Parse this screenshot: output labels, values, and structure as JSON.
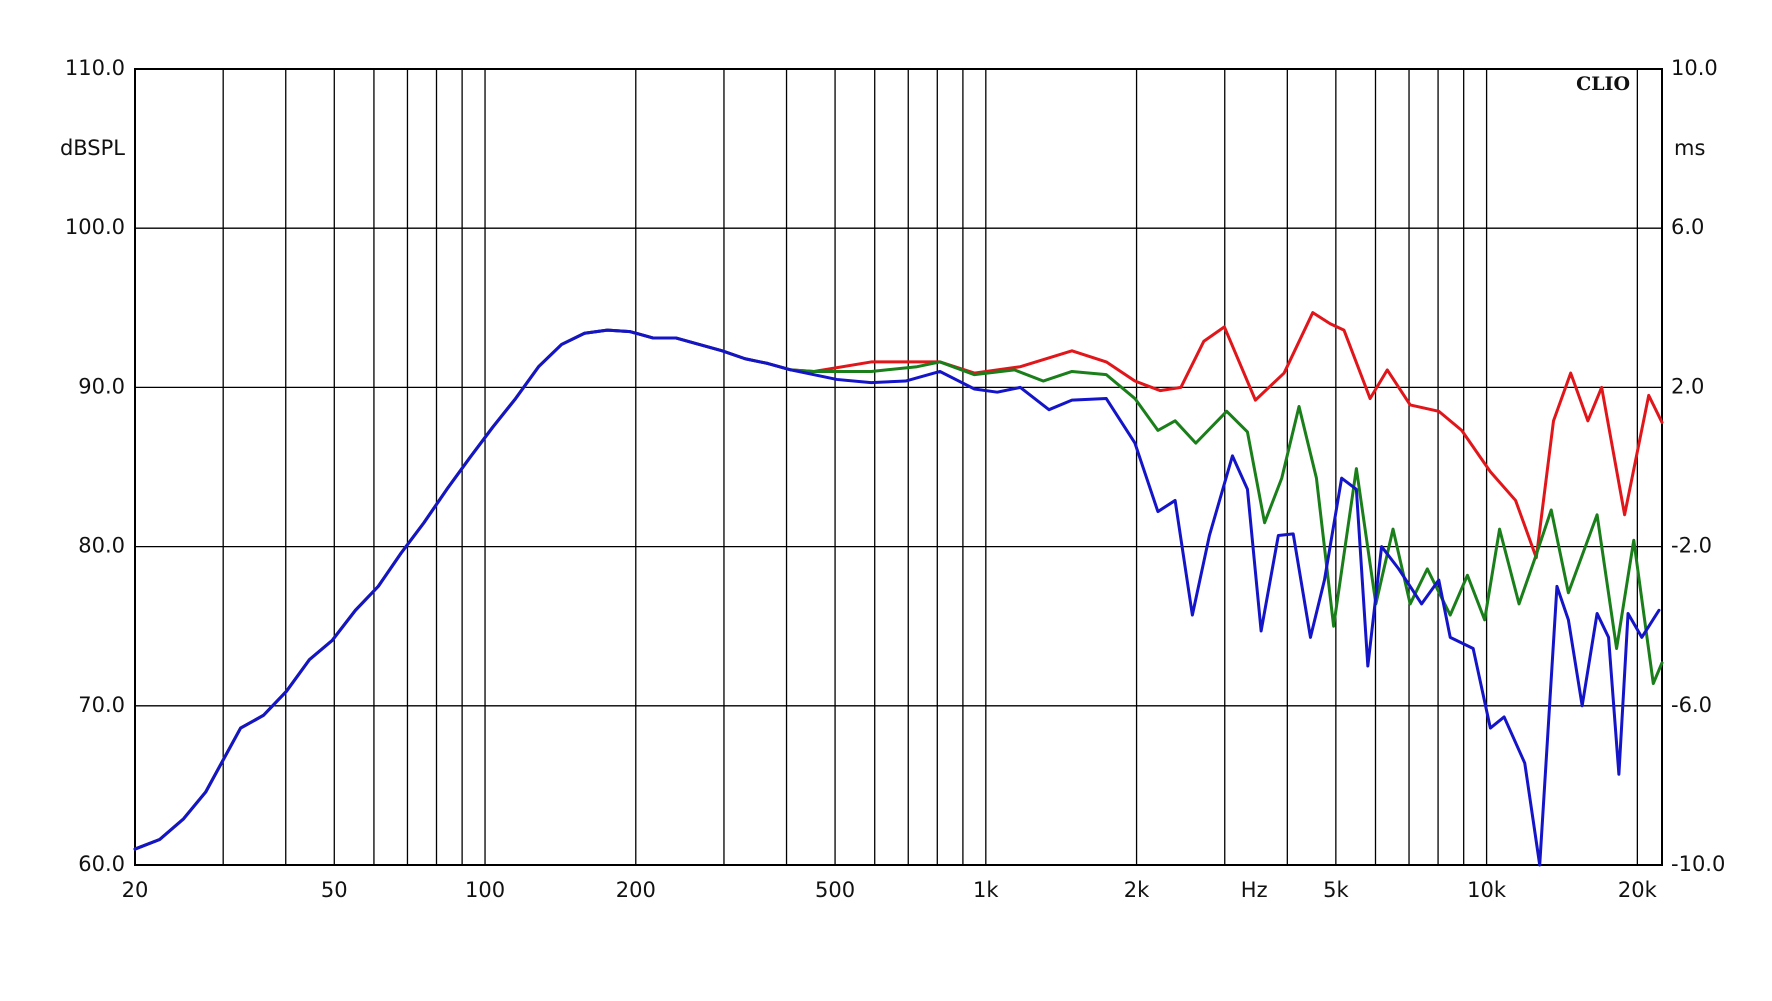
{
  "chart_data": {
    "type": "line",
    "title": "CLIO",
    "y_label": "dBSPL",
    "y2_label": "ms",
    "x_label": "Hz",
    "x_scale": "log",
    "grid": true,
    "xlim": [
      20,
      22400
    ],
    "xticks": [
      20,
      50,
      100,
      200,
      500,
      {
        "value": 1000,
        "label": "1k"
      },
      {
        "value": 2000,
        "label": "2k"
      },
      {
        "value": 5000,
        "label": "5k"
      },
      {
        "value": 10000,
        "label": "10k"
      },
      {
        "value": 20000,
        "label": "20k"
      }
    ],
    "xgrid": [
      30,
      40,
      60,
      70,
      80,
      90,
      300,
      400,
      600,
      700,
      800,
      900,
      3000,
      4000,
      6000,
      7000,
      8000,
      9000
    ],
    "ylim": [
      60,
      110
    ],
    "yticks": [
      {
        "value": 60,
        "label": "60.0"
      },
      {
        "value": 70,
        "label": "70.0"
      },
      {
        "value": 80,
        "label": "80.0"
      },
      {
        "value": 90,
        "label": "90.0"
      },
      {
        "value": 100,
        "label": "100.0"
      },
      {
        "value": 110,
        "label": "110.0"
      }
    ],
    "y2lim": [
      -10,
      10
    ],
    "y2ticks": [
      {
        "value": -10,
        "label": "-10.0"
      },
      {
        "value": -6,
        "label": "-6.0"
      },
      {
        "value": -2,
        "label": "-2.0"
      },
      {
        "value": 2,
        "label": "2.0"
      },
      {
        "value": 6,
        "label": "6.0"
      },
      {
        "value": 10,
        "label": "10.0"
      }
    ],
    "series": [
      {
        "color": "#e0161b",
        "x": [
          20,
          22.4,
          25,
          27.7,
          30,
          32.5,
          36.1,
          40.1,
          44.6,
          49.5,
          55.1,
          61.2,
          68,
          75.5,
          83.9,
          93.3,
          103.6,
          115.1,
          127.9,
          142.2,
          158,
          175.5,
          195,
          216.8,
          240.9,
          267.7,
          297.5,
          330.6,
          367.3,
          408.2,
          453.6,
          590.4,
          810,
          949,
          1172,
          1486,
          1740,
          1985,
          2229,
          2452,
          2725,
          2995,
          3454,
          3941,
          4497,
          4872,
          5190,
          5853,
          6334,
          7037,
          8026,
          8918,
          10175,
          11426,
          12566,
          13602,
          14721,
          15930,
          16972,
          18862,
          21072,
          22400
        ],
        "values": [
          61.0,
          61.6,
          62.9,
          64.6,
          66.6,
          68.6,
          69.4,
          70.9,
          72.9,
          74.1,
          76.0,
          77.5,
          79.6,
          81.5,
          83.6,
          85.6,
          87.5,
          89.3,
          91.3,
          92.7,
          93.4,
          93.6,
          93.5,
          93.1,
          93.1,
          92.7,
          92.3,
          91.8,
          91.5,
          91.1,
          91.0,
          91.6,
          91.6,
          90.9,
          91.3,
          92.3,
          91.6,
          90.4,
          89.8,
          90.0,
          92.9,
          93.8,
          89.2,
          90.9,
          94.7,
          94.0,
          93.6,
          89.3,
          91.1,
          88.9,
          88.5,
          87.3,
          84.7,
          82.9,
          79.3,
          87.9,
          90.9,
          87.9,
          90.0,
          82.0,
          89.5,
          87.8
        ]
      },
      {
        "color": "#1a7f1a",
        "x": [
          20,
          22.4,
          25,
          27.7,
          30,
          32.5,
          36.1,
          40.1,
          44.6,
          49.5,
          55.1,
          61.2,
          68,
          75.5,
          83.9,
          93.3,
          103.6,
          115.1,
          127.9,
          142.2,
          158,
          175.5,
          195,
          216.8,
          240.9,
          267.7,
          297.5,
          330.6,
          367.3,
          408.2,
          453.6,
          590.4,
          729,
          810,
          949,
          1141,
          1302,
          1486,
          1740,
          1985,
          2206,
          2388,
          2626,
          3027,
          3330,
          3603,
          3899,
          4221,
          4573,
          4949,
          5495,
          6010,
          6503,
          7037,
          7614,
          8460,
          9157,
          9910,
          10614,
          11608,
          12566,
          13459,
          14566,
          16619,
          18179,
          19672,
          21520,
          22400
        ],
        "values": [
          61.0,
          61.6,
          62.9,
          64.6,
          66.6,
          68.6,
          69.4,
          70.9,
          72.9,
          74.1,
          76.0,
          77.5,
          79.6,
          81.5,
          83.6,
          85.6,
          87.5,
          89.3,
          91.3,
          92.7,
          93.4,
          93.6,
          93.5,
          93.1,
          93.1,
          92.7,
          92.3,
          91.8,
          91.5,
          91.1,
          91.0,
          91.0,
          91.3,
          91.6,
          90.8,
          91.1,
          90.4,
          91.0,
          90.8,
          89.3,
          87.3,
          87.9,
          86.5,
          88.5,
          87.2,
          81.5,
          84.3,
          88.8,
          84.3,
          75.0,
          84.9,
          76.4,
          81.1,
          76.4,
          78.6,
          75.7,
          78.2,
          75.4,
          81.1,
          76.4,
          79.5,
          82.3,
          77.1,
          82.0,
          73.6,
          80.4,
          71.4,
          72.7
        ]
      },
      {
        "color": "#1414c8",
        "x": [
          20,
          22.4,
          25,
          27.7,
          30,
          32.5,
          36.1,
          40.1,
          44.6,
          49.5,
          55.1,
          61.2,
          68,
          75.5,
          83.9,
          93.3,
          103.6,
          115.1,
          127.9,
          142.2,
          158,
          175.5,
          195,
          216.8,
          240.9,
          267.7,
          297.5,
          330.6,
          367.3,
          408.2,
          453.6,
          504,
          590.4,
          691.6,
          810,
          949,
          1054,
          1172,
          1337,
          1486,
          1740,
          1985,
          2206,
          2388,
          2585,
          2796,
          3108,
          3330,
          3546,
          3838,
          4110,
          4449,
          4745,
          5135,
          5495,
          5792,
          6170,
          6676,
          7417,
          8026,
          8460,
          9400,
          10175,
          10840,
          11918,
          12766,
          13819,
          14566,
          15518,
          16619,
          17520,
          18372,
          19163,
          20413,
          22091
        ],
        "values": [
          61.0,
          61.6,
          62.9,
          64.6,
          66.6,
          68.6,
          69.4,
          70.9,
          72.9,
          74.1,
          76.0,
          77.5,
          79.6,
          81.5,
          83.6,
          85.6,
          87.5,
          89.3,
          91.3,
          92.7,
          93.4,
          93.6,
          93.5,
          93.1,
          93.1,
          92.7,
          92.3,
          91.8,
          91.5,
          91.1,
          90.8,
          90.5,
          90.3,
          90.4,
          91.0,
          89.9,
          89.7,
          90.0,
          88.6,
          89.2,
          89.3,
          86.5,
          82.2,
          82.9,
          75.7,
          80.7,
          85.7,
          83.6,
          74.7,
          80.7,
          80.8,
          74.3,
          77.9,
          84.3,
          83.6,
          72.5,
          80.0,
          78.6,
          76.4,
          77.9,
          74.3,
          73.6,
          68.6,
          69.3,
          66.4,
          60.0,
          77.5,
          75.4,
          70.0,
          75.8,
          74.3,
          65.7,
          75.8,
          74.3,
          76.0
        ]
      }
    ]
  }
}
